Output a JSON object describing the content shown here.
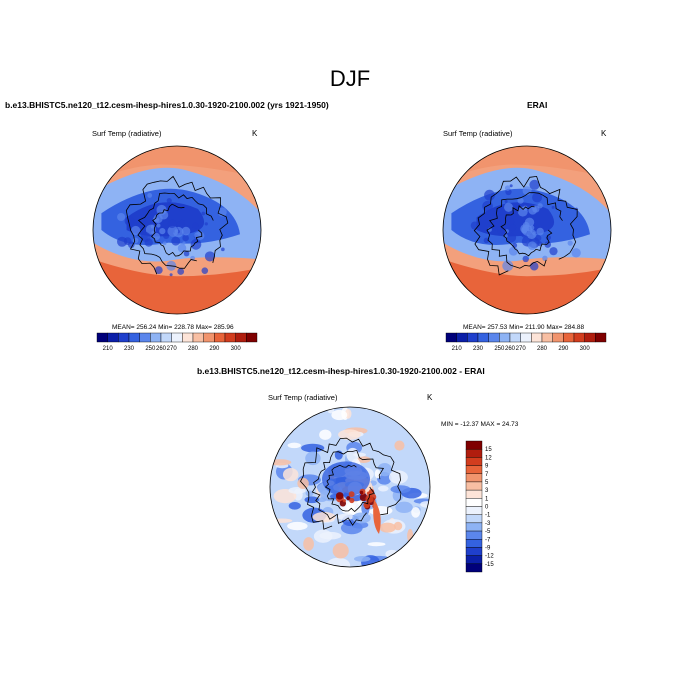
{
  "title": "DJF",
  "colors": {
    "ocean_cold": "#1f5bd6",
    "land_cold": "#2a4fd0",
    "warm": "#e8643a",
    "coast": "#000000"
  },
  "panels": [
    {
      "title": "b.e13.BHISTC5.ne120_t12.cesm-ihesp-hires1.0.30-1920-2100.002 (yrs 1921-1950)",
      "variable": "Surf Temp (radiative)",
      "units": "K",
      "stats": "MEAN= 256.24  Min= 228.78  Max= 285.96",
      "projection": "north-polar-stereographic"
    },
    {
      "title": "ERAI",
      "variable": "Surf Temp (radiative)",
      "units": "K",
      "stats": "MEAN= 257.53  Min= 211.90  Max= 284.88",
      "projection": "north-polar-stereographic"
    },
    {
      "title": "b.e13.BHISTC5.ne120_t12.cesm-ihesp-hires1.0.30-1920-2100.002 - ERAI",
      "variable": "Surf Temp (radiative)",
      "units": "K",
      "stats": "MIN = -12.37 MAX =  24.73",
      "projection": "north-polar-stereographic"
    }
  ],
  "chart_data": [
    {
      "type": "heatmap",
      "title": "b.e13.BHISTC5.ne120_t12.cesm-ihesp-hires1.0.30-1920-2100.002 (yrs 1921-1950)",
      "variable": "Surf Temp (radiative)",
      "units": "K",
      "mean": 256.24,
      "min": 228.78,
      "max": 285.96,
      "colorbar": {
        "orientation": "horizontal",
        "tick_labels": [
          "210",
          "230",
          "250",
          "260",
          "270",
          "280",
          "290",
          "300"
        ],
        "colors": [
          "#00007a",
          "#0b1fa8",
          "#1f3fcc",
          "#3462e0",
          "#5b86ec",
          "#8eb3f4",
          "#c2d8fa",
          "#ecf2fd",
          "#fde4d8",
          "#f8bfa3",
          "#f1946d",
          "#e8643a",
          "#d23d1e",
          "#b01d0e",
          "#7f0000"
        ]
      }
    },
    {
      "type": "heatmap",
      "title": "ERAI",
      "variable": "Surf Temp (radiative)",
      "units": "K",
      "mean": 257.53,
      "min": 211.9,
      "max": 284.88,
      "colorbar": {
        "orientation": "horizontal",
        "tick_labels": [
          "210",
          "230",
          "250",
          "260",
          "270",
          "280",
          "290",
          "300"
        ],
        "colors": [
          "#00007a",
          "#0b1fa8",
          "#1f3fcc",
          "#3462e0",
          "#5b86ec",
          "#8eb3f4",
          "#c2d8fa",
          "#ecf2fd",
          "#fde4d8",
          "#f8bfa3",
          "#f1946d",
          "#e8643a",
          "#d23d1e",
          "#b01d0e",
          "#7f0000"
        ]
      }
    },
    {
      "type": "heatmap",
      "title": "b.e13.BHISTC5.ne120_t12.cesm-ihesp-hires1.0.30-1920-2100.002 - ERAI",
      "variable": "Surf Temp (radiative)",
      "units": "K",
      "min": -12.37,
      "max": 24.73,
      "colorbar": {
        "orientation": "vertical",
        "tick_labels": [
          "15",
          "12",
          "9",
          "7",
          "5",
          "3",
          "1",
          "0",
          "-1",
          "-3",
          "-5",
          "-7",
          "-9",
          "-12",
          "-15"
        ],
        "colors": [
          "#7f0000",
          "#b01d0e",
          "#d23d1e",
          "#e8643a",
          "#f1946d",
          "#f8bfa3",
          "#fde4d8",
          "#ffffff",
          "#ecf2fd",
          "#c2d8fa",
          "#8eb3f4",
          "#5b86ec",
          "#3462e0",
          "#1f3fcc",
          "#0b1fa8",
          "#00007a"
        ]
      }
    }
  ]
}
